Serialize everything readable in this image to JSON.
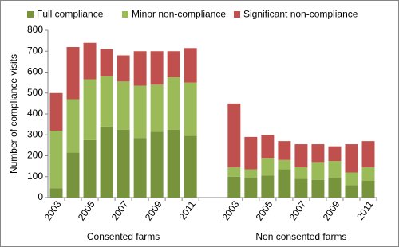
{
  "chart_data": {
    "type": "stacked_bar",
    "y_label": "Number of compliance visits",
    "groups": [
      {
        "label": "Consented farms",
        "categories": [
          "2003",
          null,
          "2005",
          null,
          "2007",
          null,
          "2009",
          null,
          "2011"
        ]
      },
      {
        "label": "Non consented farms",
        "categories": [
          "2003",
          null,
          "2005",
          null,
          "2007",
          null,
          "2009",
          null,
          "2011"
        ]
      }
    ],
    "series": [
      {
        "name": "Full compliance",
        "color": "#77933c",
        "values": [
          45,
          215,
          275,
          340,
          325,
          285,
          315,
          325,
          295,
          100,
          95,
          105,
          135,
          90,
          85,
          95,
          60,
          80
        ]
      },
      {
        "name": "Minor non-compliance",
        "color": "#9bbb59",
        "values": [
          275,
          255,
          290,
          240,
          230,
          250,
          225,
          250,
          255,
          45,
          40,
          85,
          45,
          55,
          85,
          80,
          60,
          65
        ]
      },
      {
        "name": "Significant non-compliance",
        "color": "#c0504d",
        "values": [
          180,
          250,
          175,
          130,
          125,
          165,
          160,
          125,
          165,
          305,
          155,
          110,
          90,
          110,
          85,
          70,
          135,
          125
        ]
      }
    ],
    "ylim": [
      0,
      800
    ],
    "yticks": [
      0,
      100,
      200,
      300,
      400,
      500,
      600,
      700,
      800
    ],
    "grid": false
  }
}
